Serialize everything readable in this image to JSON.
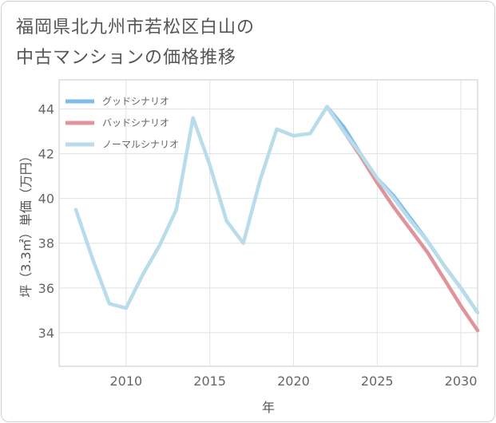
{
  "title_lines": [
    "福岡県北九州市若松区白山の",
    "中古マンションの価格推移"
  ],
  "chart_data": {
    "type": "line",
    "title": "福岡県北九州市若松区白山の中古マンションの価格推移",
    "xlabel": "年",
    "ylabel": "坪（3.3㎡）単価（万円）",
    "xlim": [
      2006,
      2031
    ],
    "ylim": [
      32.5,
      45.3
    ],
    "xticks": [
      2010,
      2015,
      2020,
      2025,
      2030
    ],
    "yticks": [
      34,
      36,
      38,
      40,
      42,
      44
    ],
    "grid": true,
    "legend_position": "top-left",
    "series": [
      {
        "name": "グッドシナリオ",
        "color": "#7dbde8",
        "x": [
          2022,
          2023,
          2024,
          2025,
          2026,
          2027,
          2028,
          2029,
          2030,
          2031
        ],
        "values": [
          44.1,
          43.2,
          42.0,
          40.9,
          40.1,
          39.1,
          38.1,
          37.0,
          36.0,
          34.9
        ]
      },
      {
        "name": "バッドシナリオ",
        "color": "#e0939a",
        "x": [
          2022,
          2023,
          2024,
          2025,
          2026,
          2027,
          2028,
          2029,
          2030,
          2031
        ],
        "values": [
          44.1,
          43.0,
          41.9,
          40.7,
          39.6,
          38.6,
          37.6,
          36.4,
          35.2,
          34.1
        ]
      },
      {
        "name": "ノーマルシナリオ",
        "color": "#b8dcea",
        "x": [
          2007,
          2008,
          2009,
          2010,
          2011,
          2012,
          2013,
          2014,
          2015,
          2016,
          2017,
          2018,
          2019,
          2020,
          2021,
          2022,
          2023,
          2024,
          2025,
          2026,
          2027,
          2028,
          2029,
          2030,
          2031
        ],
        "values": [
          39.5,
          37.3,
          35.3,
          35.1,
          36.6,
          37.9,
          39.5,
          43.6,
          41.5,
          39.0,
          38.0,
          40.8,
          43.1,
          42.8,
          42.9,
          44.1,
          43.0,
          42.0,
          40.9,
          40.0,
          39.0,
          38.1,
          37.0,
          36.0,
          34.9
        ]
      }
    ]
  }
}
